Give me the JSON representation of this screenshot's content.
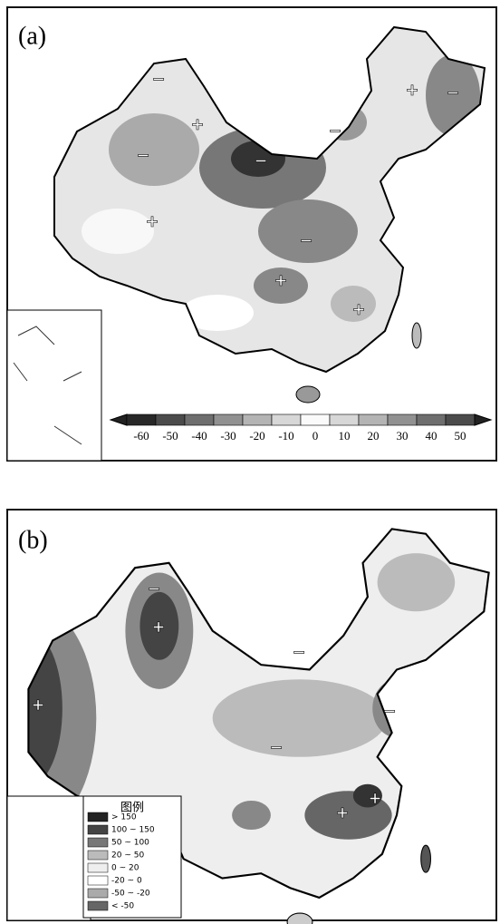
{
  "panels": [
    {
      "label": "(a)",
      "signs": [
        "−",
        "+",
        "−",
        "+",
        "−",
        "−",
        "+",
        "−",
        "−",
        "+",
        "+"
      ],
      "colorbar": [
        -60,
        -50,
        -40,
        -30,
        -20,
        -10,
        0,
        10,
        20,
        30,
        40,
        50
      ]
    },
    {
      "label": "(b)",
      "signs": [
        "+",
        "+",
        "−",
        "−",
        "−",
        "+",
        "+",
        "−"
      ],
      "legend": {
        "title": "图例",
        "entries": [
          "> 150",
          "100 ~ 150",
          "50 ~ 100",
          "20 ~ 50",
          "0 ~ 20",
          "-20 ~ 0",
          "-50 ~ -20",
          "< -50"
        ]
      }
    }
  ]
}
